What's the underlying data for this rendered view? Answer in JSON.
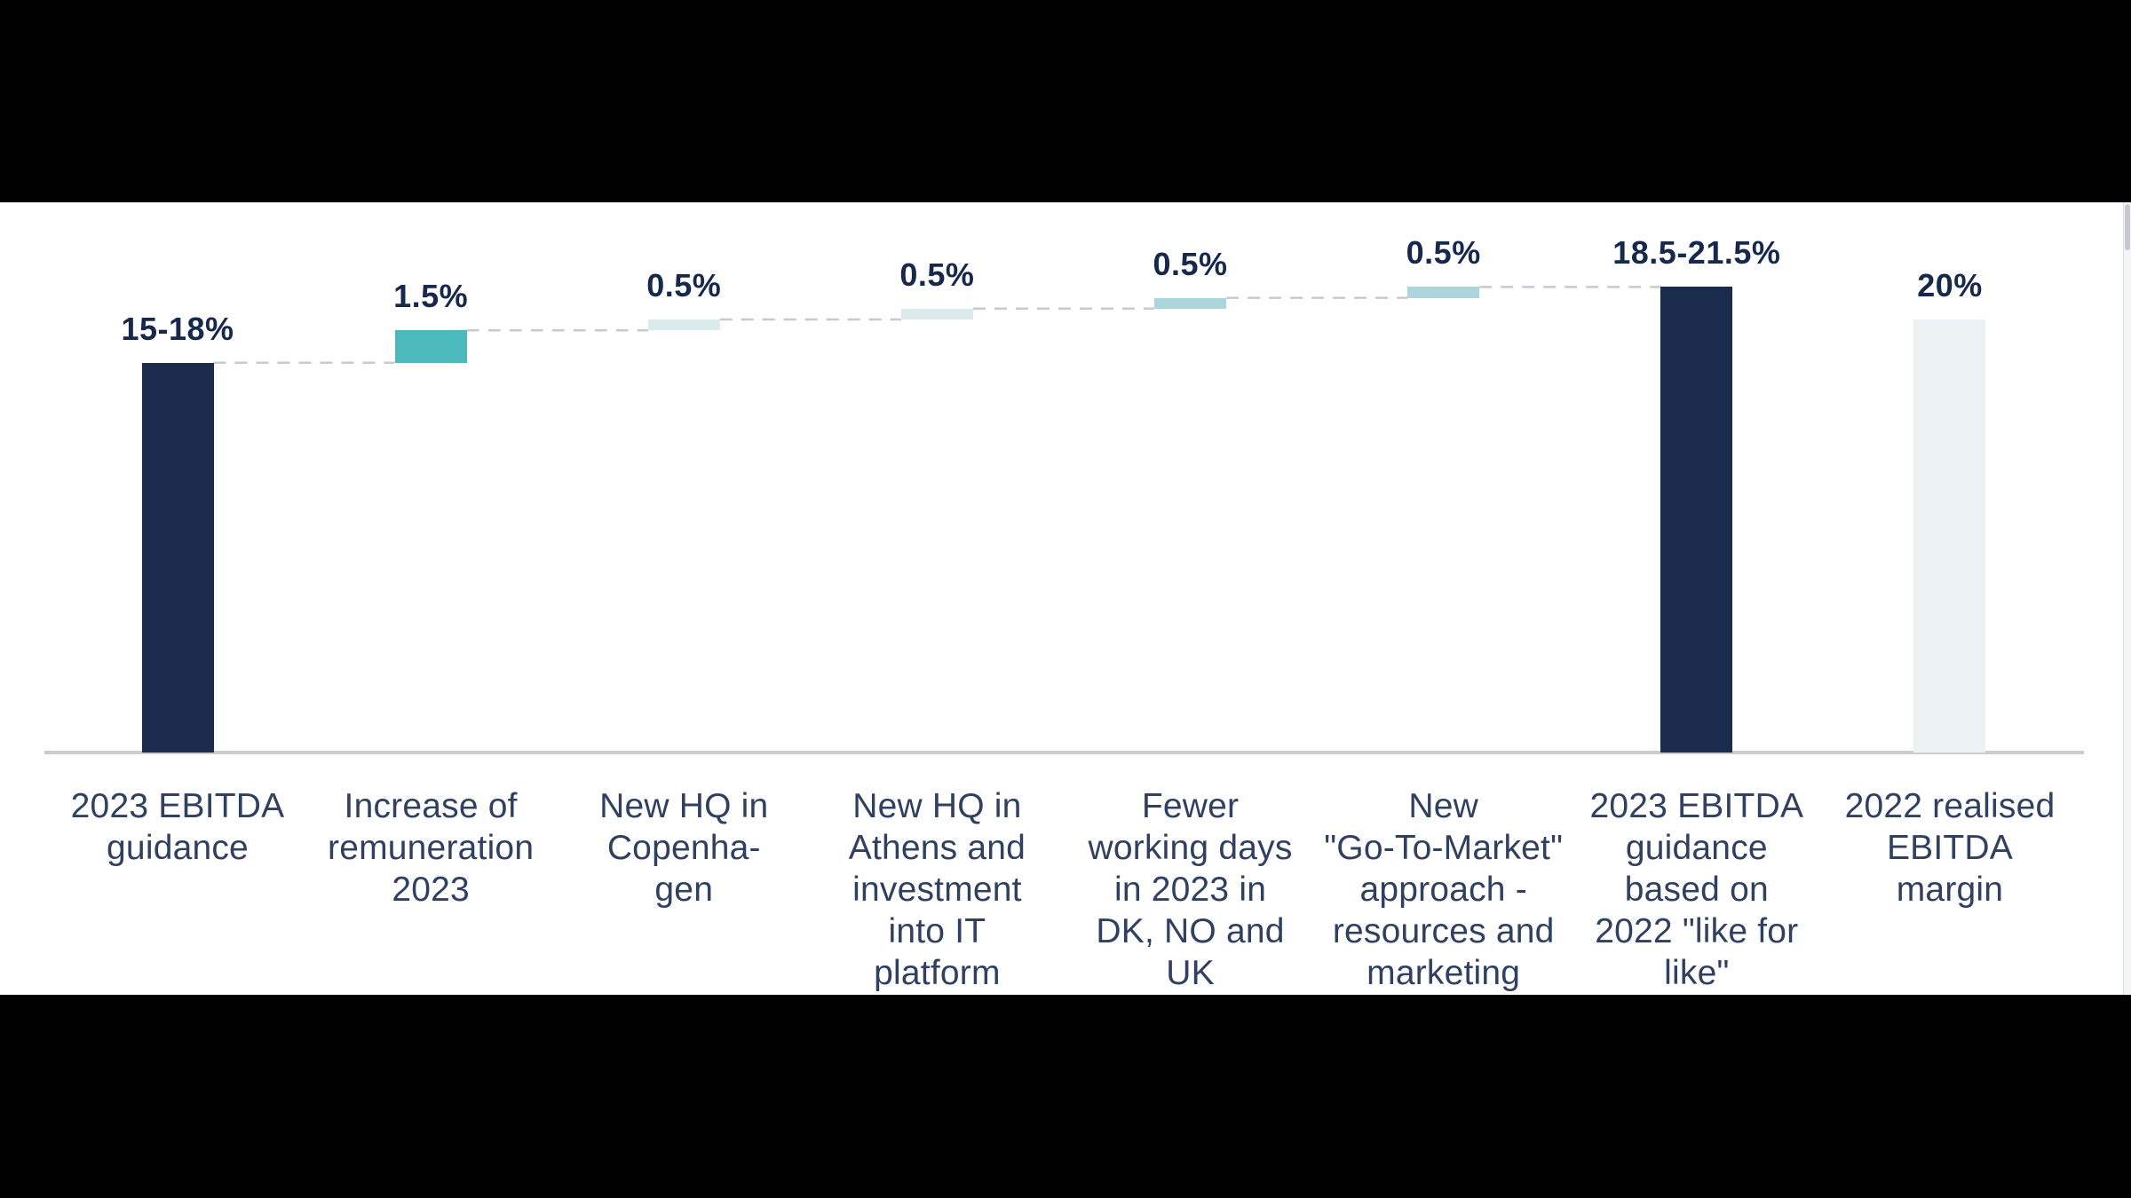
{
  "scene": {
    "background_color": "#000000",
    "slide_background_color": "#ffffff"
  },
  "chart_data": {
    "type": "bar",
    "subtype": "waterfall",
    "title": "",
    "unit": "%",
    "ylim": [
      0,
      23
    ],
    "grid": false,
    "legend": "none",
    "colors": {
      "navy": "#1b2b4e",
      "teal": "#4cb9bc",
      "pale": "#dbeaea",
      "light": "#abd6db",
      "faint": "#ecf2f3"
    },
    "connector_color": "#c6cad3",
    "connector_style": "dashed",
    "axis_color": "#c9cbce",
    "value_label_color": "#16284b",
    "category_label_color": "#304060",
    "bars": [
      {
        "label": "2023 EBITDA guidance",
        "label_lines": [
          "2023 EBITDA",
          "guidance"
        ],
        "value_label": "15-18%",
        "value_range": [
          15,
          18
        ],
        "start": 0,
        "end": 18,
        "role": "total",
        "color_key": "navy"
      },
      {
        "label": "Increase of remuneration 2023",
        "label_lines": [
          "Increase of",
          "remuneration",
          "2023"
        ],
        "value_label": "1.5%",
        "value": 1.5,
        "start": 18,
        "end": 19.5,
        "role": "increase",
        "color_key": "teal"
      },
      {
        "label": "New HQ in Copenhagen",
        "label_lines": [
          "New HQ in",
          "Copenha-",
          "gen"
        ],
        "value_label": "0.5%",
        "value": 0.5,
        "start": 19.5,
        "end": 20,
        "role": "increase",
        "color_key": "pale"
      },
      {
        "label": "New HQ in Athens and investment into IT platform",
        "label_lines": [
          "New HQ in",
          "Athens and",
          "investment",
          "into IT",
          "platform"
        ],
        "value_label": "0.5%",
        "value": 0.5,
        "start": 20,
        "end": 20.5,
        "role": "increase",
        "color_key": "pale"
      },
      {
        "label": "Fewer working days in 2023 in DK, NO and UK",
        "label_lines": [
          "Fewer",
          "working days",
          "in 2023 in",
          "DK, NO and",
          "UK"
        ],
        "value_label": "0.5%",
        "value": 0.5,
        "start": 20.5,
        "end": 21,
        "role": "increase",
        "color_key": "light"
      },
      {
        "label": "New \"Go-To-Market\" approach - resources and marketing",
        "label_lines": [
          "New",
          "\"Go-To-Market\"",
          "approach -",
          "resources and",
          "marketing"
        ],
        "value_label": "0.5%",
        "value": 0.5,
        "start": 21,
        "end": 21.5,
        "role": "increase",
        "color_key": "light"
      },
      {
        "label": "2023 EBITDA guidance based on 2022 \"like for like\"",
        "label_lines": [
          "2023 EBITDA",
          "guidance",
          "based on",
          "2022 \"like for",
          "like\""
        ],
        "value_label": "18.5-21.5%",
        "value_range": [
          18.5,
          21.5
        ],
        "start": 0,
        "end": 21.5,
        "role": "total",
        "color_key": "navy"
      },
      {
        "label": "2022 realised EBITDA margin",
        "label_lines": [
          "2022 realised",
          "EBITDA",
          "margin"
        ],
        "value_label": "20%",
        "value": 20,
        "start": 0,
        "end": 20,
        "role": "total",
        "color_key": "faint"
      }
    ]
  },
  "scrollbar": {
    "present": true
  }
}
